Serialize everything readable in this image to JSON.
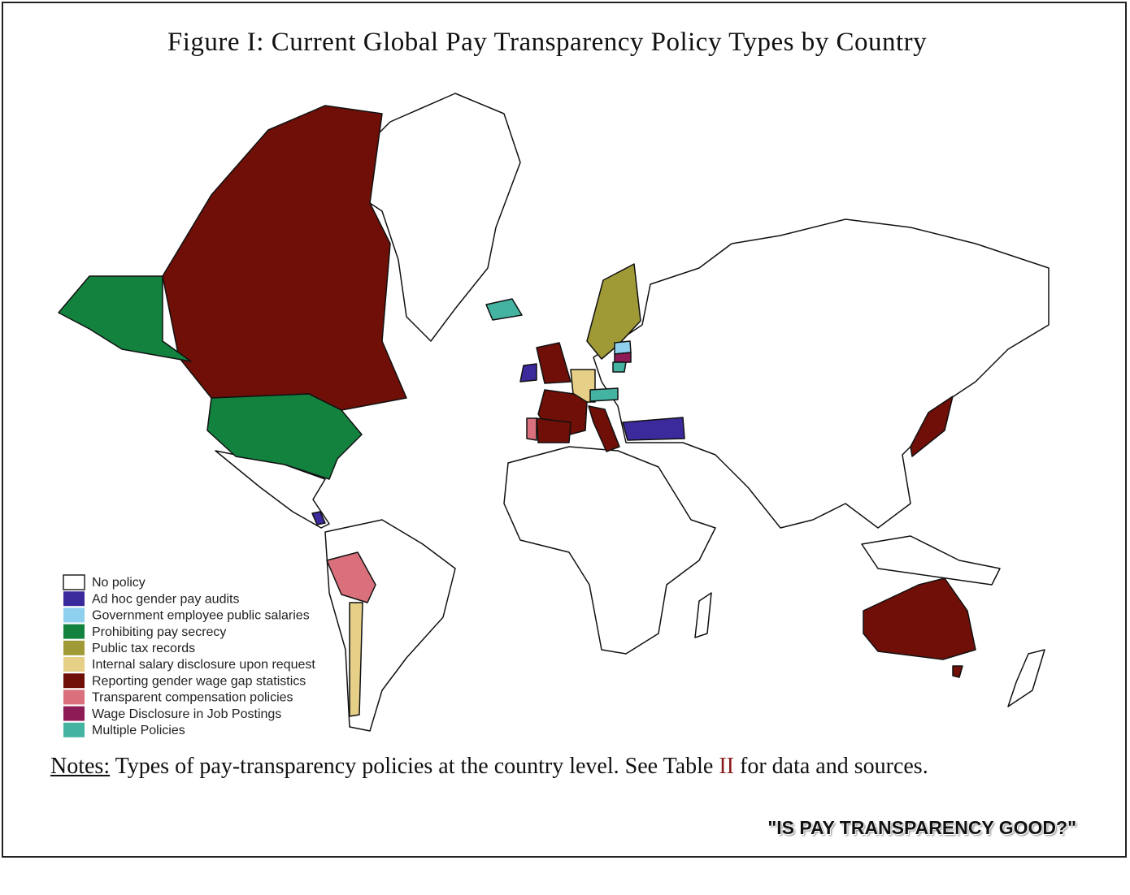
{
  "title": "Figure I: Current Global Pay Transparency Policy Types by Country",
  "legend": {
    "items": [
      {
        "label": "No policy",
        "color": "#ffffff"
      },
      {
        "label": "Ad hoc gender pay audits",
        "color": "#3b2a9c"
      },
      {
        "label": "Government employee public salaries",
        "color": "#8fd0ee"
      },
      {
        "label": "Prohibiting pay secrecy",
        "color": "#13823f"
      },
      {
        "label": "Public tax records",
        "color": "#a09a36"
      },
      {
        "label": "Internal salary disclosure upon request",
        "color": "#e6cf86"
      },
      {
        "label": "Reporting gender wage gap statistics",
        "color": "#6f0f08"
      },
      {
        "label": "Transparent compensation policies",
        "color": "#d9707c"
      },
      {
        "label": "Wage Disclosure in Job Postings",
        "color": "#8d1b56"
      },
      {
        "label": "Multiple Policies",
        "color": "#45b3a2"
      }
    ]
  },
  "notes": {
    "heading": "Notes:",
    "text_before": "Types of pay-transparency policies at the country level.  See Table",
    "table_ref": "II",
    "text_after": "for data and sources."
  },
  "footer": "\"IS PAY TRANSPARENCY GOOD?\""
}
